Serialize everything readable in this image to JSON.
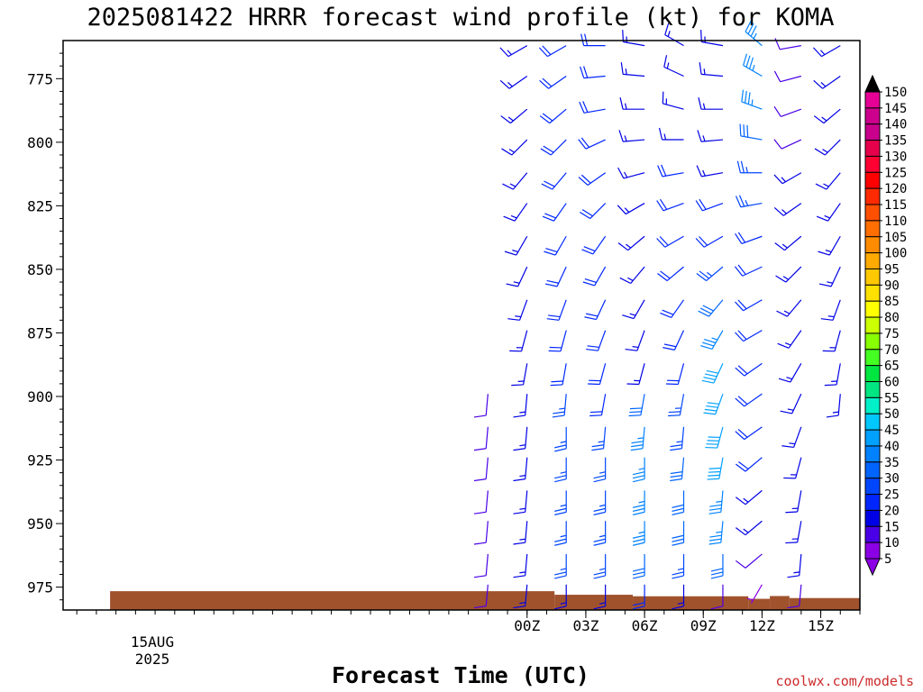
{
  "chart_data": {
    "type": "wind-barb-profile",
    "title": "2025081422 HRRR forecast wind profile (kt) for KOMA",
    "xlabel": "Forecast Time (UTC)",
    "ylabel": "",
    "credit": "coolwx.com/models",
    "units": "kt",
    "y_axis": {
      "scale": "pressure (hPa), increasing downward",
      "ticks": [
        775,
        800,
        825,
        850,
        875,
        900,
        925,
        950,
        975
      ],
      "tick_labels": [
        "775",
        "800",
        "825",
        "850",
        "875",
        "900",
        "925",
        "950",
        "975"
      ],
      "range": [
        760,
        984
      ]
    },
    "x_axis": {
      "range_hours": [
        -23.7,
        17.0
      ],
      "ticks_hours": [
        0,
        3,
        6,
        9,
        12,
        15
      ],
      "tick_labels": [
        "00Z",
        "03Z",
        "06Z",
        "09Z",
        "12Z",
        "15Z"
      ],
      "date_label": [
        "15AUG",
        "2025"
      ]
    },
    "grid": false,
    "barb_levels": [
      762,
      774,
      787,
      799,
      812,
      824,
      837,
      849,
      862,
      874,
      887,
      899,
      912,
      924,
      937,
      949,
      962,
      974
    ],
    "profiles": [
      {
        "time": "22Z",
        "hour": -2,
        "speeds": [
          null,
          null,
          null,
          null,
          null,
          null,
          null,
          null,
          null,
          null,
          null,
          10,
          10,
          10,
          10,
          10,
          10,
          10
        ],
        "directions": [
          null,
          null,
          null,
          null,
          null,
          null,
          null,
          null,
          null,
          null,
          null,
          185,
          185,
          185,
          185,
          185,
          185,
          185
        ]
      },
      {
        "time": "00Z",
        "hour": 0,
        "speeds": [
          15,
          15,
          15,
          15,
          15,
          15,
          15,
          15,
          15,
          15,
          15,
          15,
          15,
          15,
          15,
          15,
          15,
          15
        ],
        "directions": [
          240,
          235,
          230,
          225,
          220,
          215,
          210,
          205,
          200,
          195,
          190,
          185,
          185,
          185,
          185,
          185,
          185,
          185
        ]
      },
      {
        "time": "02Z",
        "hour": 2,
        "speeds": [
          20,
          20,
          20,
          20,
          20,
          20,
          20,
          20,
          20,
          20,
          20,
          25,
          25,
          25,
          25,
          25,
          25,
          15
        ],
        "directions": [
          240,
          235,
          230,
          225,
          220,
          215,
          210,
          205,
          200,
          195,
          190,
          185,
          180,
          180,
          180,
          180,
          180,
          180
        ]
      },
      {
        "time": "04Z",
        "hour": 4,
        "speeds": [
          20,
          20,
          20,
          20,
          20,
          20,
          20,
          20,
          20,
          20,
          20,
          20,
          25,
          25,
          25,
          25,
          25,
          15
        ],
        "directions": [
          270,
          265,
          260,
          245,
          235,
          225,
          215,
          210,
          205,
          200,
          195,
          190,
          185,
          180,
          180,
          180,
          180,
          180
        ]
      },
      {
        "time": "06Z",
        "hour": 6,
        "speeds": [
          15,
          15,
          15,
          15,
          15,
          15,
          15,
          15,
          15,
          15,
          15,
          30,
          35,
          35,
          35,
          35,
          30,
          20
        ],
        "directions": [
          280,
          275,
          270,
          265,
          255,
          240,
          230,
          220,
          210,
          200,
          195,
          190,
          185,
          180,
          180,
          180,
          180,
          180
        ]
      },
      {
        "time": "08Z",
        "hour": 8,
        "speeds": [
          15,
          15,
          15,
          15,
          20,
          20,
          20,
          20,
          20,
          20,
          20,
          25,
          25,
          30,
          30,
          30,
          25,
          15
        ],
        "directions": [
          300,
          295,
          285,
          270,
          260,
          250,
          240,
          230,
          215,
          205,
          195,
          190,
          185,
          185,
          180,
          180,
          180,
          180
        ]
      },
      {
        "time": "10Z",
        "hour": 10,
        "speeds": [
          15,
          15,
          15,
          15,
          15,
          20,
          20,
          25,
          30,
          35,
          40,
          40,
          40,
          40,
          35,
          35,
          30,
          10
        ],
        "directions": [
          280,
          275,
          270,
          265,
          260,
          250,
          240,
          230,
          220,
          210,
          205,
          200,
          195,
          190,
          185,
          185,
          180,
          180
        ]
      },
      {
        "time": "12Z",
        "hour": 12,
        "speeds": [
          35,
          35,
          35,
          30,
          25,
          25,
          20,
          20,
          20,
          20,
          20,
          20,
          20,
          20,
          15,
          15,
          10,
          5
        ],
        "directions": [
          310,
          300,
          290,
          280,
          270,
          260,
          250,
          245,
          240,
          240,
          235,
          235,
          235,
          230,
          230,
          230,
          230,
          210
        ]
      },
      {
        "time": "14Z",
        "hour": 14,
        "speeds": [
          10,
          10,
          10,
          10,
          15,
          15,
          15,
          15,
          15,
          15,
          15,
          15,
          15,
          15,
          15,
          15,
          15,
          10
        ],
        "directions": [
          260,
          255,
          250,
          245,
          240,
          235,
          230,
          225,
          220,
          215,
          210,
          205,
          200,
          195,
          190,
          190,
          185,
          185
        ]
      },
      {
        "time": "16Z",
        "hour": 16,
        "speeds": [
          15,
          15,
          15,
          15,
          15,
          15,
          15,
          15,
          15,
          15,
          15,
          15,
          null,
          null,
          null,
          null,
          null,
          null
        ],
        "directions": [
          240,
          235,
          230,
          225,
          220,
          215,
          210,
          205,
          200,
          195,
          190,
          185,
          null,
          null,
          null,
          null,
          null,
          null
        ]
      }
    ],
    "terrain": {
      "color": "#a0522d",
      "segments": [
        {
          "from_hour": -21.3,
          "to_hour": 1.4,
          "pressure": 976.6
        },
        {
          "from_hour": 1.4,
          "to_hour": 5.4,
          "pressure": 978.0
        },
        {
          "from_hour": 5.4,
          "to_hour": 11.3,
          "pressure": 978.6
        },
        {
          "from_hour": 11.3,
          "to_hour": 12.4,
          "pressure": 979.6
        },
        {
          "from_hour": 12.4,
          "to_hour": 13.4,
          "pressure": 978.5
        },
        {
          "from_hour": 13.4,
          "to_hour": 17.0,
          "pressure": 979.3
        }
      ]
    },
    "colorbar": {
      "labels": [
        "150",
        "145",
        "140",
        "135",
        "130",
        "125",
        "120",
        "115",
        "110",
        "105",
        "100",
        "95",
        "90",
        "85",
        "80",
        "75",
        "70",
        "65",
        "60",
        "55",
        "50",
        "45",
        "40",
        "35",
        "30",
        "25",
        "20",
        "15",
        "10",
        "5"
      ],
      "bounds": [
        5,
        150
      ],
      "extend": "both",
      "colors": [
        "#000000",
        "#e60096",
        "#cc008c",
        "#c8008c",
        "#e6004b",
        "#ff0033",
        "#ff0000",
        "#ff2a00",
        "#ff4f00",
        "#ff6e00",
        "#ff8c00",
        "#ffaa00",
        "#ffc800",
        "#ffe100",
        "#ffff00",
        "#ccff00",
        "#88ff00",
        "#44ff22",
        "#00e640",
        "#00e680",
        "#00f0c8",
        "#00c8ff",
        "#00a0ff",
        "#0082ff",
        "#0064ff",
        "#0046ff",
        "#0026ff",
        "#0000e6",
        "#4a00e6",
        "#8c00e6"
      ]
    }
  }
}
